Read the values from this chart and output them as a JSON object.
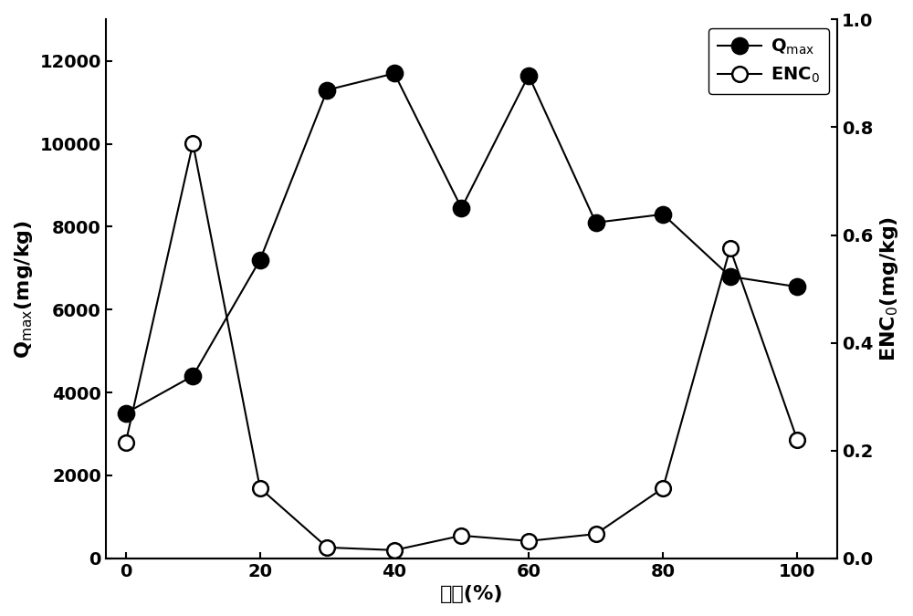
{
  "x": [
    0,
    10,
    20,
    30,
    40,
    50,
    60,
    70,
    80,
    90,
    100
  ],
  "qmax": [
    3500,
    4400,
    7200,
    11300,
    11700,
    8450,
    11650,
    8100,
    8300,
    6800,
    6550
  ],
  "enc0": [
    0.215,
    0.77,
    0.13,
    0.02,
    0.015,
    0.042,
    0.032,
    0.045,
    0.13,
    0.575,
    0.22
  ],
  "xlabel": "汸石(%)",
  "ylabel_left": "Q$_\\mathrm{max}$(mg/kg)",
  "ylabel_right": "ENC$_\\mathrm{0}$(mg/kg)",
  "legend_qmax": "Q$_\\mathrm{max}$",
  "legend_enc0": "ENC$_\\mathrm{0}$",
  "xlim": [
    -3,
    106
  ],
  "ylim_left": [
    0,
    13000
  ],
  "ylim_right": [
    0,
    1.0
  ],
  "xticks": [
    0,
    20,
    40,
    60,
    80,
    100
  ],
  "yticks_left": [
    0,
    2000,
    4000,
    6000,
    8000,
    10000,
    12000
  ],
  "yticks_right": [
    0.0,
    0.2,
    0.4,
    0.6,
    0.8,
    1.0
  ],
  "line_color": "#000000",
  "marker_size_filled": 13,
  "marker_size_open": 12,
  "linewidth": 1.5,
  "font_size_label": 16,
  "font_size_tick": 14,
  "font_size_legend": 14
}
